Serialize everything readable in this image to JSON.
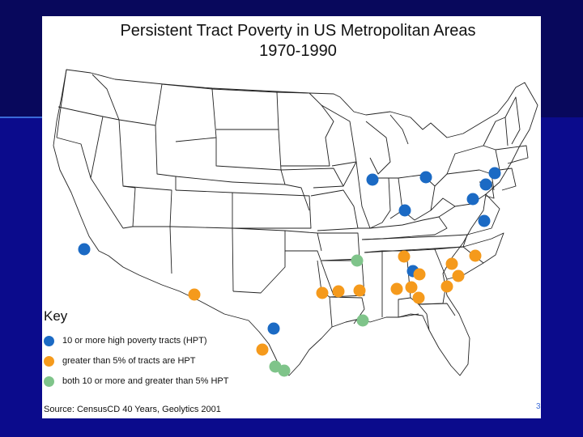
{
  "slide": {
    "title_line1": "Persistent Tract Poverty in US Metropolitan Areas",
    "title_line2": "1970-1990",
    "slide_number": "3"
  },
  "legend": {
    "title": "Key",
    "items": [
      {
        "label": "10 or more high poverty tracts (HPT)",
        "color": "#1b6ac4"
      },
      {
        "label": "greater than 5% of tracts are HPT",
        "color": "#f59a1c"
      },
      {
        "label": "both 10 or more and greater than 5% HPT",
        "color": "#7fc48a"
      }
    ]
  },
  "source": "Source: CensusCD 40 Years, Geolytics 2001",
  "colors": {
    "map_outline": "#222222",
    "background": "#0a0a6e"
  }
}
